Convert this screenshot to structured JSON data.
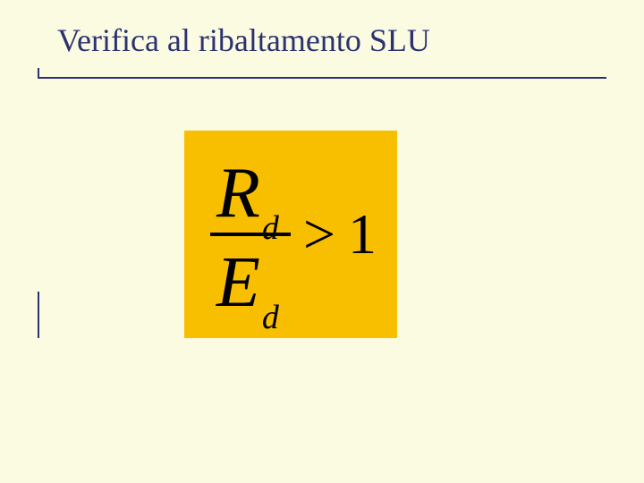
{
  "slide": {
    "title": "Verifica al ribaltamento SLU",
    "background_color": "#fbfbe2",
    "title_color": "#2b3270",
    "title_fontsize": 36,
    "rule_color": "#2b3270"
  },
  "formula": {
    "box_color": "#f8bf00",
    "text_color": "#000000",
    "numerator_symbol": "R",
    "numerator_subscript": "d",
    "denominator_symbol": "E",
    "denominator_subscript": "d",
    "operator": ">",
    "rhs": "1",
    "big_fontsize": 80,
    "sub_fontsize": 38,
    "op_fontsize": 64,
    "frac_bar_width": 90
  }
}
